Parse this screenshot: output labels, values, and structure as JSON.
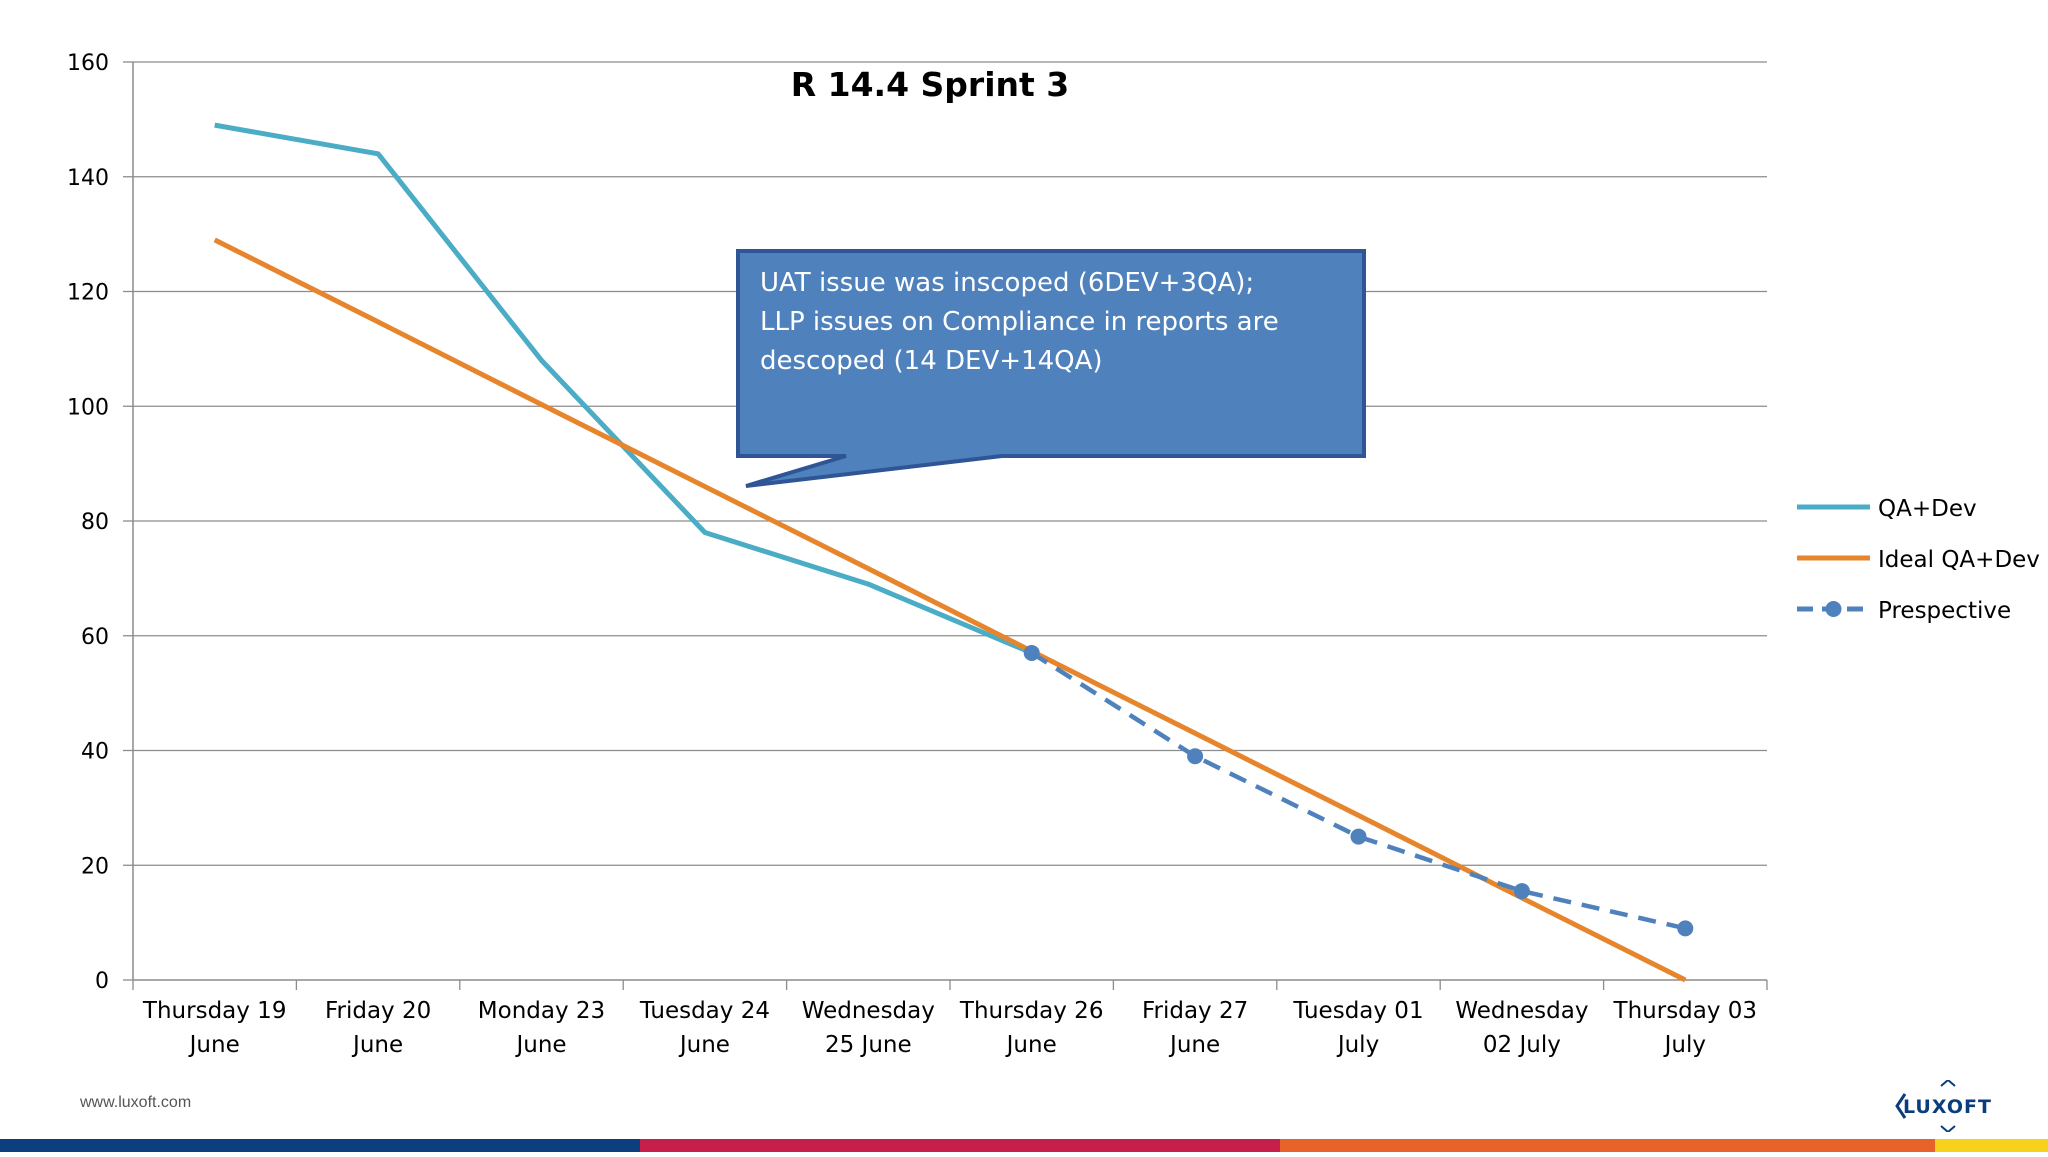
{
  "chart_data": {
    "type": "line",
    "title": "R 14.4 Sprint 3",
    "xlabel": "",
    "ylabel": "",
    "ylim": [
      0,
      160
    ],
    "yticks": [
      0,
      20,
      40,
      60,
      80,
      100,
      120,
      140,
      160
    ],
    "grid": true,
    "legend_position": "right",
    "categories": [
      [
        "Thursday 19",
        "June"
      ],
      [
        "Friday   20",
        "June"
      ],
      [
        "Monday    23",
        "June"
      ],
      [
        "Tuesday    24",
        "June"
      ],
      [
        "Wednesday",
        "25 June"
      ],
      [
        "Thursday 26",
        "June"
      ],
      [
        "Friday    27",
        "June"
      ],
      [
        "Tuesday    01",
        "July"
      ],
      [
        "Wednesday",
        "02 July"
      ],
      [
        "Thursday 03",
        "July"
      ]
    ],
    "series": [
      {
        "name": "QA+Dev",
        "color": "#4BACC6",
        "style": "solid",
        "values": [
          149,
          144,
          108,
          78,
          69,
          57,
          null,
          null,
          null,
          null
        ]
      },
      {
        "name": "Ideal QA+Dev",
        "color": "#E6852C",
        "style": "solid",
        "values": [
          129,
          114.7,
          100.3,
          86,
          71.7,
          57.3,
          43,
          28.7,
          14.3,
          0
        ]
      },
      {
        "name": "Prespective",
        "color": "#4F81BD",
        "style": "dashed-markers",
        "values": [
          null,
          null,
          null,
          null,
          null,
          57,
          39,
          25,
          15.5,
          9
        ]
      }
    ],
    "annotation": {
      "lines": [
        "UAT issue was inscoped (6DEV+3QA);",
        "LLP issues  on Compliance in reports are",
        "descoped (14 DEV+14QA)"
      ],
      "fill": "#4F81BD",
      "text_color": "#ffffff"
    }
  },
  "footer": {
    "url": "www.luxoft.com",
    "logo_text": "LUXOFT",
    "band_colors": [
      "#0d3f7f",
      "#c61f4b",
      "#e8632a",
      "#f7d21c"
    ]
  }
}
